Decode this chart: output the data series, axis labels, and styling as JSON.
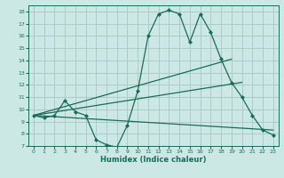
{
  "title": "",
  "xlabel": "Humidex (Indice chaleur)",
  "ylabel": "",
  "bg_color": "#cce8e4",
  "grid_color": "#aaccca",
  "line_color": "#1a6b5a",
  "xlim": [
    -0.5,
    23.5
  ],
  "ylim": [
    7,
    18.5
  ],
  "xticks": [
    0,
    1,
    2,
    3,
    4,
    5,
    6,
    7,
    8,
    9,
    10,
    11,
    12,
    13,
    14,
    15,
    16,
    17,
    18,
    19,
    20,
    21,
    22,
    23
  ],
  "yticks": [
    7,
    8,
    9,
    10,
    11,
    12,
    13,
    14,
    15,
    16,
    17,
    18
  ],
  "series": [
    {
      "x": [
        0,
        1,
        2,
        3,
        4,
        5,
        6,
        7,
        8,
        9,
        10,
        11,
        12,
        13,
        14,
        15,
        16,
        17,
        18,
        19,
        20,
        21,
        22,
        23
      ],
      "y": [
        9.5,
        9.3,
        9.5,
        10.7,
        9.8,
        9.5,
        7.5,
        7.1,
        6.9,
        8.7,
        11.5,
        16.0,
        17.8,
        18.1,
        17.8,
        15.5,
        17.8,
        16.3,
        14.1,
        12.2,
        11.0,
        9.5,
        8.3,
        7.9
      ],
      "marker": "D",
      "markersize": 2.0
    },
    {
      "x": [
        0,
        19
      ],
      "y": [
        9.5,
        14.1
      ],
      "marker": null,
      "markersize": 0
    },
    {
      "x": [
        0,
        20
      ],
      "y": [
        9.5,
        12.2
      ],
      "marker": null,
      "markersize": 0
    },
    {
      "x": [
        0,
        23
      ],
      "y": [
        9.5,
        8.3
      ],
      "marker": null,
      "markersize": 0
    }
  ]
}
